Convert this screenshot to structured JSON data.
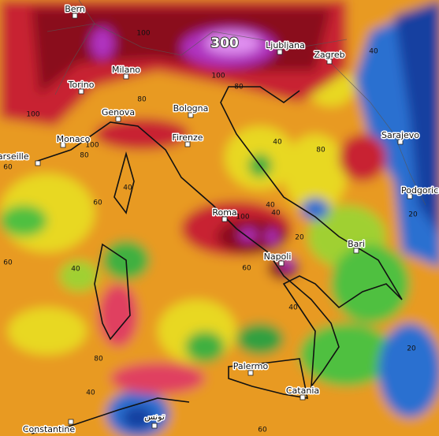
{
  "map": {
    "max_label": 300,
    "cities": [
      "Bern",
      "Milano",
      "Torino",
      "Genova",
      "Bologna",
      "Ljubljana",
      "Zagreb",
      "Monaco",
      "Marseille",
      "Firenze",
      "Sarajevo",
      "Podgorica",
      "Roma",
      "Bari",
      "Napoli",
      "Palermo",
      "Catania",
      "Constantine",
      "تونس"
    ],
    "contour_labels": [
      100,
      100,
      80,
      100,
      80,
      60,
      40,
      60,
      60,
      40,
      80,
      40,
      100,
      80,
      40,
      80,
      40,
      100,
      40,
      20,
      60,
      40,
      40,
      20,
      60,
      20
    ]
  }
}
